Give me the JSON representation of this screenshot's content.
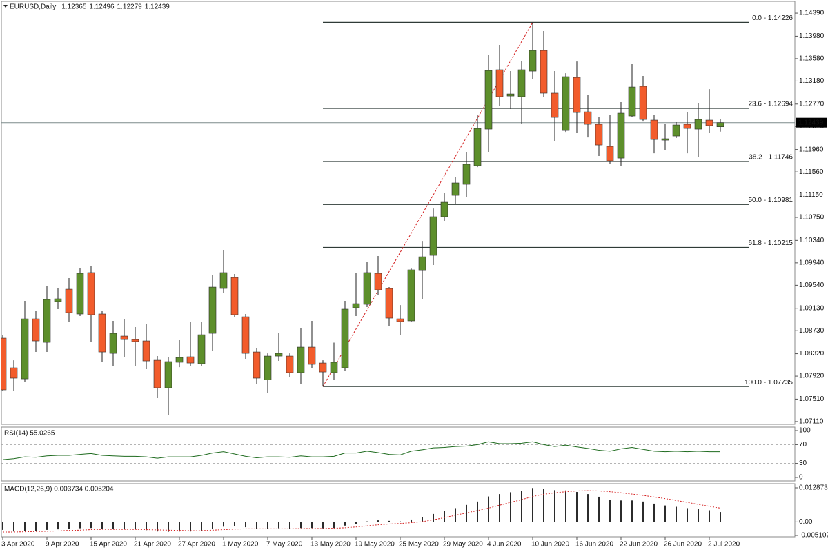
{
  "chart_data": [
    {
      "type": "candlestick",
      "title": "EURUSD,Daily",
      "title_values": [
        1.12365,
        1.12496,
        1.12279,
        1.12439
      ],
      "up_color": "#5d8f2b",
      "down_color": "#f25c2c",
      "categories": [
        "3 Apr 2020",
        null,
        null,
        null,
        "9 Apr 2020",
        null,
        null,
        null,
        "15 Apr 2020",
        null,
        null,
        null,
        "21 Apr 2020",
        null,
        null,
        null,
        "27 Apr 2020",
        null,
        null,
        null,
        "1 May 2020",
        null,
        null,
        null,
        "7 May 2020",
        null,
        null,
        null,
        "13 May 2020",
        null,
        null,
        null,
        "19 May 2020",
        null,
        null,
        null,
        "25 May 2020",
        null,
        null,
        null,
        "29 May 2020",
        null,
        null,
        null,
        "4 Jun 2020",
        null,
        null,
        null,
        "10 Jun 2020",
        null,
        null,
        null,
        "16 Jun 2020",
        null,
        null,
        null,
        "22 Jun 2020",
        null,
        null,
        null,
        "26 Jun 2020",
        null,
        null,
        null,
        "2 Jul 2020",
        null
      ],
      "open": [
        1.08597,
        1.08068,
        1.07871,
        1.08941,
        1.08523,
        1.09249,
        1.0947,
        1.09028,
        1.09766,
        1.09028,
        1.08326,
        1.08634,
        1.08572,
        1.08548,
        1.08203,
        1.07711,
        1.08167,
        1.08265,
        1.08142,
        1.08683,
        1.09483,
        1.09679,
        1.08978,
        1.08351,
        1.07851,
        1.08277,
        1.08277,
        1.07982,
        1.08437,
        1.08154,
        1.07982,
        1.08068,
        1.09138,
        1.092,
        1.09753,
        1.09483,
        1.08941,
        1.08905,
        1.09802,
        1.10073,
        1.10762,
        1.11143,
        1.1134,
        1.11672,
        1.12324,
        1.13382,
        1.12914,
        1.12902,
        1.13357,
        1.13726,
        1.12964,
        1.12299,
        1.13246,
        1.12631,
        1.1241,
        1.12016,
        1.11807,
        1.12558,
        1.13087,
        1.12484,
        1.12127,
        1.12201,
        1.1241,
        1.12324,
        1.12484,
        1.12365
      ],
      "high": [
        1.08658,
        1.08203,
        1.09261,
        1.09089,
        1.0952,
        1.09495,
        1.09667,
        1.09852,
        1.09889,
        1.09089,
        1.08905,
        1.08929,
        1.08794,
        1.08843,
        1.08277,
        1.08253,
        1.0856,
        1.0888,
        1.08892,
        1.09729,
        1.10159,
        1.09741,
        1.09028,
        1.08413,
        1.08326,
        1.08683,
        1.08326,
        1.08782,
        1.08905,
        1.08203,
        1.08517,
        1.09261,
        1.09766,
        1.09962,
        1.10061,
        1.09507,
        1.09187,
        1.09839,
        1.10331,
        1.10909,
        1.1118,
        1.11475,
        1.11918,
        1.12582,
        1.1364,
        1.13825,
        1.13357,
        1.13542,
        1.14226,
        1.14071,
        1.13357,
        1.1332,
        1.13529,
        1.12939,
        1.12533,
        1.12582,
        1.12804,
        1.1348,
        1.13271,
        1.1257,
        1.1241,
        1.12447,
        1.12619,
        1.12779,
        1.13037,
        1.12496
      ],
      "low": [
        1.0765,
        1.07662,
        1.07822,
        1.08351,
        1.08351,
        1.09114,
        1.08892,
        1.08991,
        1.08536,
        1.08167,
        1.08105,
        1.08253,
        1.08105,
        1.08044,
        1.07527,
        1.07232,
        1.0808,
        1.08105,
        1.08105,
        1.08376,
        1.09397,
        1.08966,
        1.08228,
        1.07773,
        1.07614,
        1.08191,
        1.07896,
        1.07773,
        1.08056,
        1.07735,
        1.07851,
        1.08007,
        1.08991,
        1.09151,
        1.09372,
        1.08818,
        1.08646,
        1.0888,
        1.09298,
        1.09901,
        1.10688,
        1.10983,
        1.11119,
        1.11647,
        1.11918,
        1.12742,
        1.12681,
        1.1241,
        1.1321,
        1.12902,
        1.12103,
        1.12262,
        1.1225,
        1.12176,
        1.11844,
        1.11697,
        1.11672,
        1.12533,
        1.12459,
        1.11893,
        1.11955,
        1.12164,
        1.11893,
        1.1182,
        1.1225,
        1.12279
      ],
      "close": [
        1.07675,
        1.07884,
        1.08941,
        1.08548,
        1.09286,
        1.09298,
        1.09052,
        1.09753,
        1.09015,
        1.08351,
        1.08683,
        1.08572,
        1.08536,
        1.08191,
        1.07711,
        1.08179,
        1.08253,
        1.08154,
        1.08658,
        1.09507,
        1.09766,
        1.09015,
        1.08326,
        1.07884,
        1.08277,
        1.08326,
        1.07982,
        1.08437,
        1.0813,
        1.07994,
        1.08167,
        1.09114,
        1.09212,
        1.09766,
        1.09458,
        1.08954,
        1.08892,
        1.09815,
        1.10048,
        1.10762,
        1.1102,
        1.11365,
        1.11697,
        1.12336,
        1.13369,
        1.12902,
        1.12951,
        1.13382,
        1.13726,
        1.12964,
        1.12533,
        1.13259,
        1.12619,
        1.1241,
        1.12041,
        1.11758,
        1.12607,
        1.13074,
        1.12496,
        1.12139,
        1.12152,
        1.12398,
        1.12336,
        1.12496,
        1.12386,
        1.12439
      ],
      "ylim": [
        1.0706,
        1.146
      ],
      "yticks": [
        {
          "value": 1.1439,
          "label": "1.14390"
        },
        {
          "value": 1.1398,
          "label": "1.13980"
        },
        {
          "value": 1.1358,
          "label": "1.13580"
        },
        {
          "value": 1.1318,
          "label": "1.13180"
        },
        {
          "value": 1.1277,
          "label": "1.12770"
        },
        {
          "value": 1.1237,
          "label": "1.12370"
        },
        {
          "value": 1.1196,
          "label": "1.11960"
        },
        {
          "value": 1.1156,
          "label": "1.11560"
        },
        {
          "value": 1.1115,
          "label": "1.11150"
        },
        {
          "value": 1.1075,
          "label": "1.10750"
        },
        {
          "value": 1.1034,
          "label": "1.10340"
        },
        {
          "value": 1.0994,
          "label": "1.09940"
        },
        {
          "value": 1.0954,
          "label": "1.09540"
        },
        {
          "value": 1.0913,
          "label": "1.09130"
        },
        {
          "value": 1.0873,
          "label": "1.08730"
        },
        {
          "value": 1.0832,
          "label": "1.08320"
        },
        {
          "value": 1.0792,
          "label": "1.07920"
        },
        {
          "value": 1.0751,
          "label": "1.07510"
        },
        {
          "value": 1.0711,
          "label": "1.07110"
        }
      ],
      "current_price": {
        "value": 1.12439,
        "label": "1.12439"
      },
      "fib": {
        "color": "#2f3b37",
        "trend_color": "#d42020",
        "levels": [
          {
            "value": 1.14226,
            "label": "0.0 - 1.14226"
          },
          {
            "value": 1.12694,
            "label": "23.6 - 1.12694"
          },
          {
            "value": 1.11746,
            "label": "38.2 - 1.11746"
          },
          {
            "value": 1.10981,
            "label": "50.0 - 1.10981"
          },
          {
            "value": 1.10215,
            "label": "61.8 - 1.10215"
          },
          {
            "value": 1.07735,
            "label": "100.0 - 1.07735"
          }
        ]
      }
    },
    {
      "type": "line",
      "title": "RSI(14) 55.0265",
      "color": "#1f6b1f",
      "values": [
        38,
        40,
        44,
        43,
        46,
        47,
        47,
        49,
        51,
        47,
        46,
        45,
        45,
        44,
        41,
        44,
        44,
        44,
        47,
        52,
        55,
        50,
        45,
        42,
        44,
        44,
        43,
        46,
        44,
        44,
        45,
        52,
        52,
        56,
        53,
        49,
        48,
        56,
        59,
        63,
        64,
        66,
        67,
        70,
        76,
        72,
        72,
        73,
        76,
        70,
        66,
        69,
        65,
        62,
        58,
        56,
        61,
        64,
        60,
        56,
        55,
        56,
        55,
        56,
        55,
        55.0265
      ],
      "ylim": [
        0,
        100
      ],
      "yticks": [
        100,
        70,
        30,
        0
      ],
      "levels": [
        70,
        30
      ]
    },
    {
      "type": "macd",
      "title": "MACD(12,26,9) 0.003734 0.005204",
      "color": "#2b2b2b",
      "signal_color": "#d42020",
      "values": [
        -0.003,
        -0.0036,
        -0.0033,
        -0.0034,
        -0.003,
        -0.0028,
        -0.0027,
        -0.0024,
        -0.0023,
        -0.0026,
        -0.0027,
        -0.0028,
        -0.0029,
        -0.0031,
        -0.0036,
        -0.0037,
        -0.0036,
        -0.0036,
        -0.0033,
        -0.0026,
        -0.0018,
        -0.0017,
        -0.002,
        -0.0025,
        -0.0025,
        -0.0024,
        -0.0025,
        -0.0023,
        -0.0023,
        -0.0024,
        -0.0023,
        -0.0014,
        -0.0007,
        0.0002,
        0.0006,
        0.0004,
        0.0002,
        0.0009,
        0.0017,
        0.003,
        0.0041,
        0.0052,
        0.0064,
        0.0077,
        0.0096,
        0.0105,
        0.0112,
        0.0118,
        0.0128,
        0.0126,
        0.012,
        0.0119,
        0.0113,
        0.0105,
        0.0095,
        0.0084,
        0.0081,
        0.0081,
        0.0077,
        0.0069,
        0.0062,
        0.0057,
        0.0052,
        0.0049,
        0.0044,
        0.003734
      ],
      "signal": [
        -0.0038,
        -0.0038,
        -0.0037,
        -0.0036,
        -0.0035,
        -0.0034,
        -0.0032,
        -0.0031,
        -0.0029,
        -0.0028,
        -0.0028,
        -0.0028,
        -0.0028,
        -0.0029,
        -0.003,
        -0.0031,
        -0.0032,
        -0.0033,
        -0.0033,
        -0.0031,
        -0.0029,
        -0.0027,
        -0.0026,
        -0.0026,
        -0.0026,
        -0.0026,
        -0.0026,
        -0.0025,
        -0.0025,
        -0.0025,
        -0.0024,
        -0.0022,
        -0.0019,
        -0.0015,
        -0.0011,
        -0.0008,
        -0.0006,
        -0.0003,
        0.0001,
        0.0008,
        0.0016,
        0.0025,
        0.0034,
        0.0043,
        0.0052,
        0.0063,
        0.0074,
        0.0084,
        0.0096,
        0.0104,
        0.011,
        0.0114,
        0.0117,
        0.0118,
        0.0117,
        0.0114,
        0.011,
        0.0105,
        0.01,
        0.0094,
        0.0088,
        0.0081,
        0.0074,
        0.0066,
        0.0059,
        0.005204
      ],
      "ylim": [
        -0.005107,
        0.012873
      ],
      "yticks": [
        0.012873,
        {
          "value": 0,
          "label": "0.00"
        },
        -0.005107
      ]
    }
  ]
}
